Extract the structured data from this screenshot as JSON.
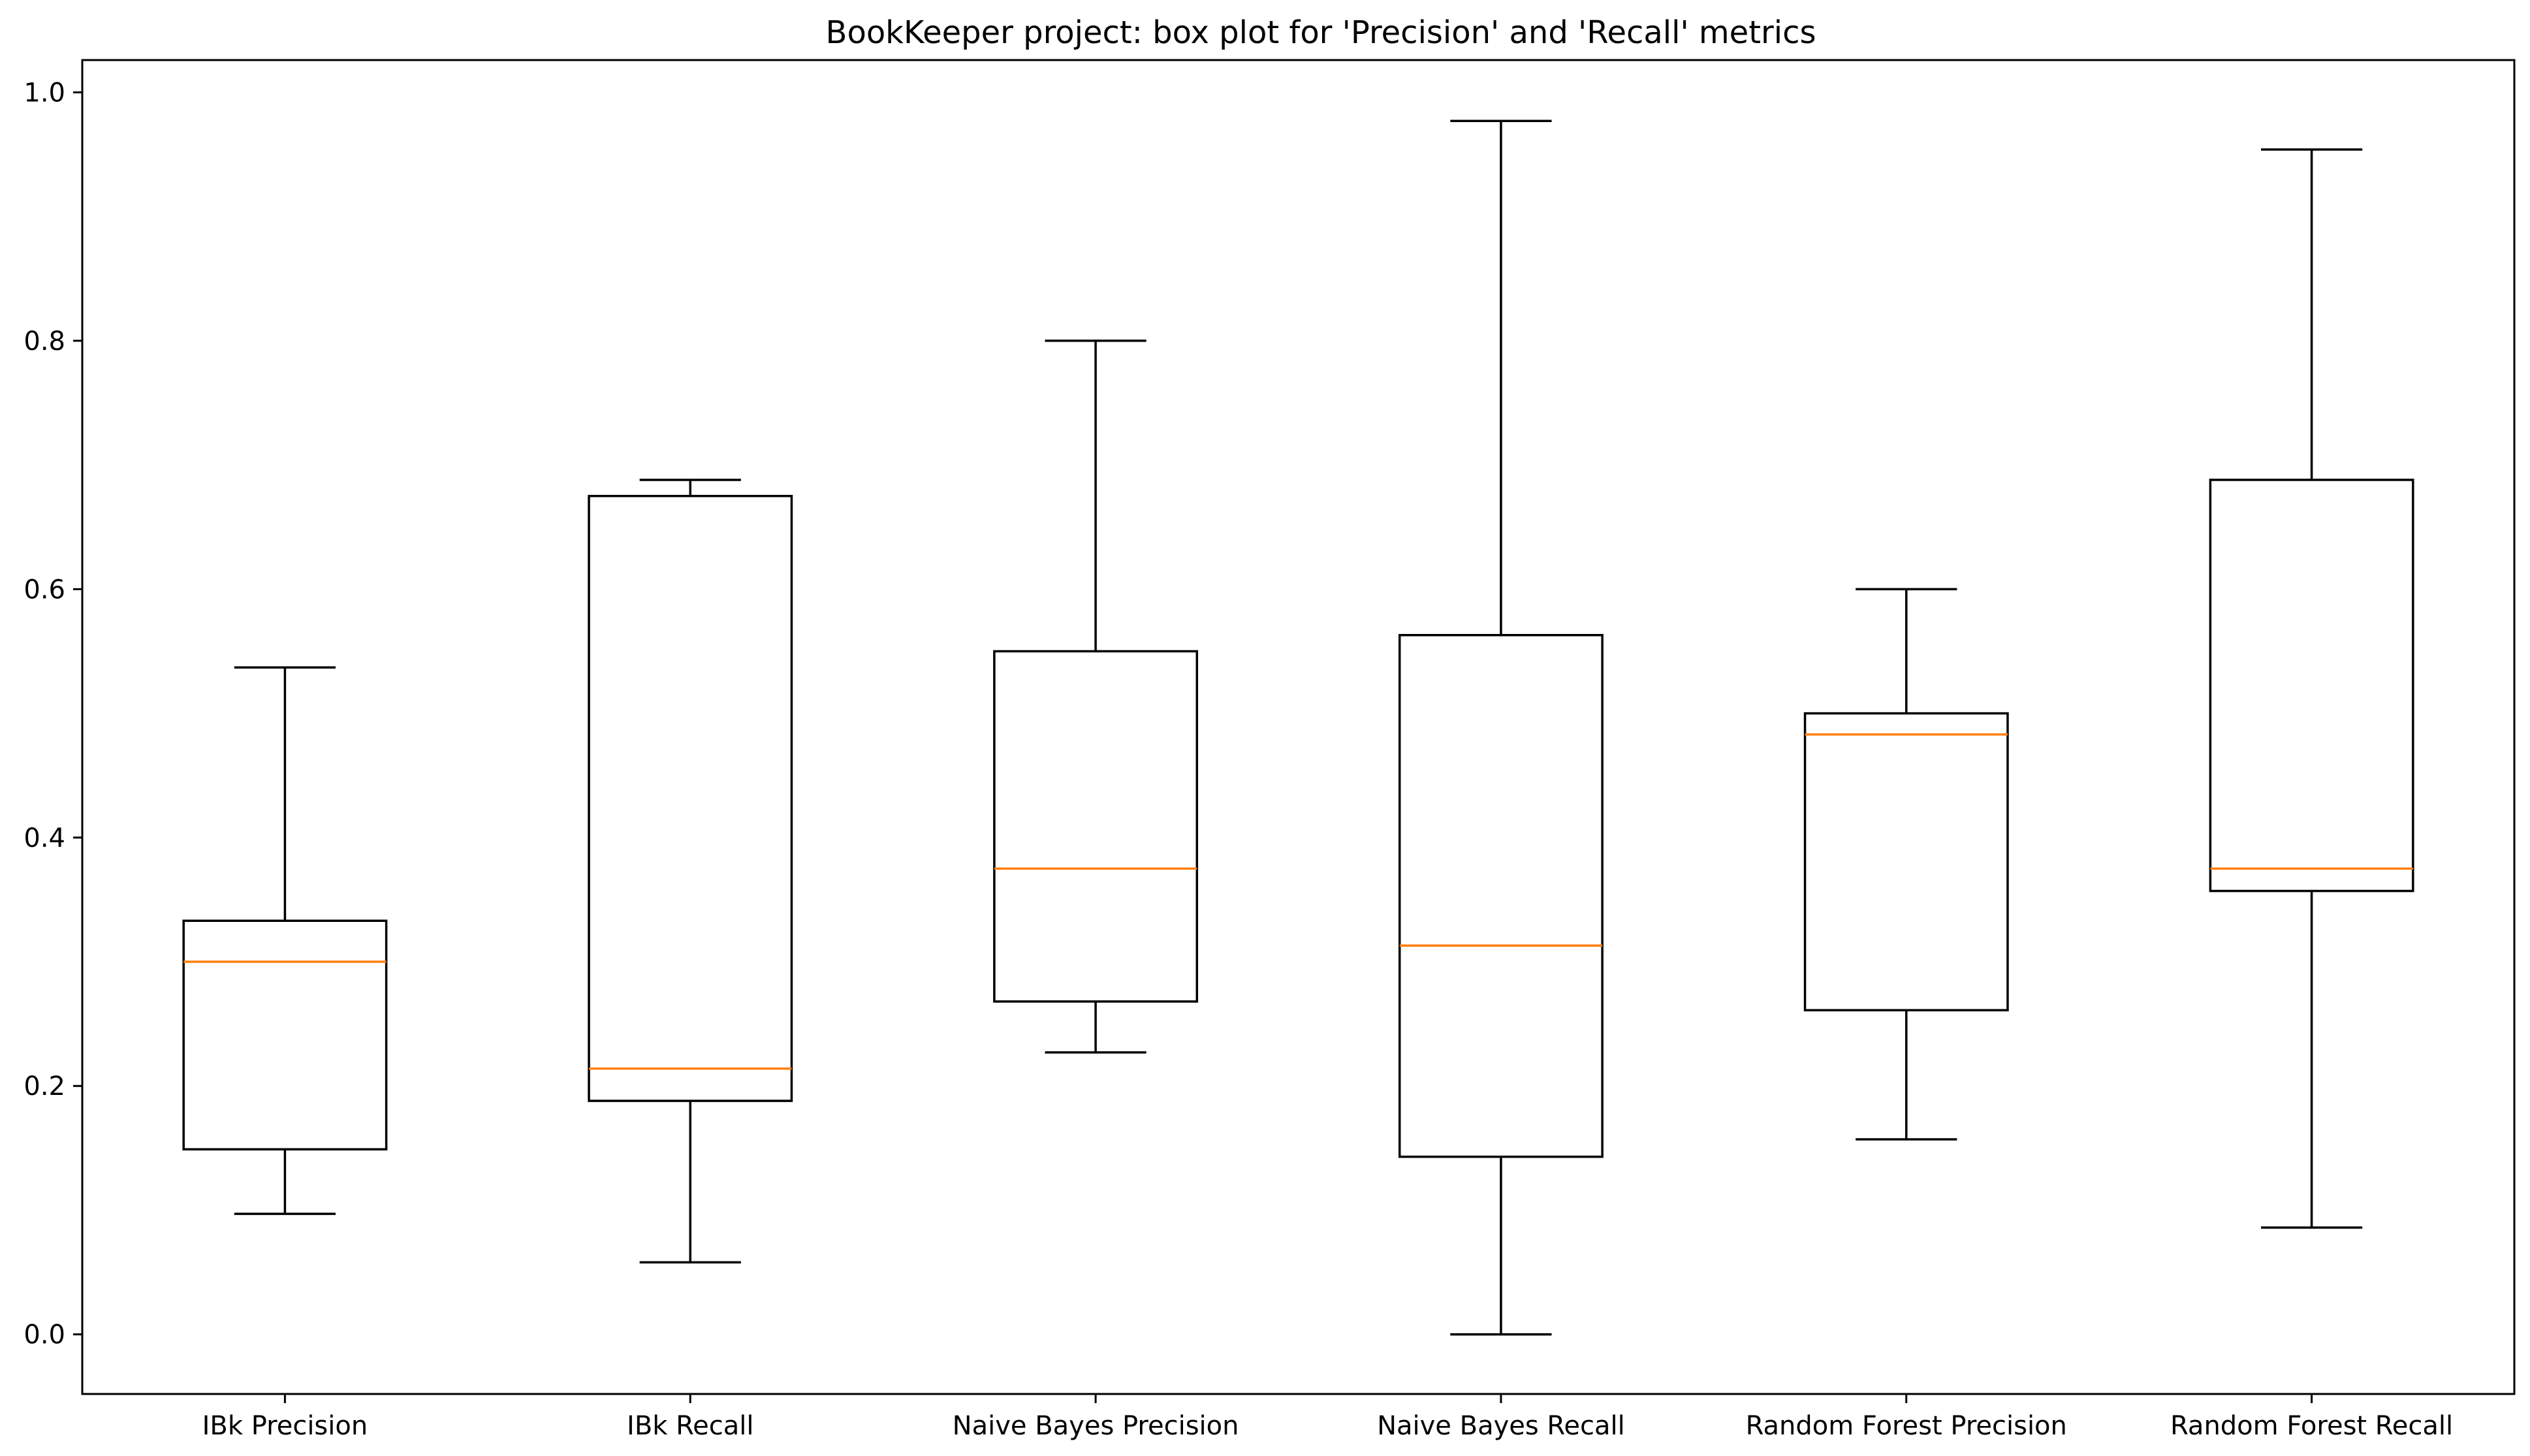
{
  "chart_data": {
    "type": "box",
    "title": "BookKeeper project: box plot for 'Precision' and 'Recall' metrics",
    "xlabel": "",
    "ylabel": "",
    "ylim": [
      -0.048,
      1.026
    ],
    "yticks": [
      0.0,
      0.2,
      0.4,
      0.6,
      0.8,
      1.0
    ],
    "ytick_labels": [
      "0.0",
      "0.2",
      "0.4",
      "0.6",
      "0.8",
      "1.0"
    ],
    "grid": false,
    "colors": {
      "box": "#000000",
      "median": "#ff7f0e",
      "axes": "#000000"
    },
    "categories": [
      "IBk Precision",
      "IBk Recall",
      "Naive Bayes Precision",
      "Naive Bayes Recall",
      "Random Forest Precision",
      "Random Forest Recall"
    ],
    "boxes": [
      {
        "whisker_low": 0.097,
        "q1": 0.149,
        "median": 0.3,
        "q3": 0.333,
        "whisker_high": 0.537
      },
      {
        "whisker_low": 0.058,
        "q1": 0.188,
        "median": 0.214,
        "q3": 0.675,
        "whisker_high": 0.688
      },
      {
        "whisker_low": 0.227,
        "q1": 0.268,
        "median": 0.375,
        "q3": 0.55,
        "whisker_high": 0.8
      },
      {
        "whisker_low": 0.0,
        "q1": 0.143,
        "median": 0.313,
        "q3": 0.563,
        "whisker_high": 0.977
      },
      {
        "whisker_low": 0.157,
        "q1": 0.261,
        "median": 0.483,
        "q3": 0.5,
        "whisker_high": 0.6
      },
      {
        "whisker_low": 0.086,
        "q1": 0.357,
        "median": 0.375,
        "q3": 0.688,
        "whisker_high": 0.954
      }
    ]
  }
}
